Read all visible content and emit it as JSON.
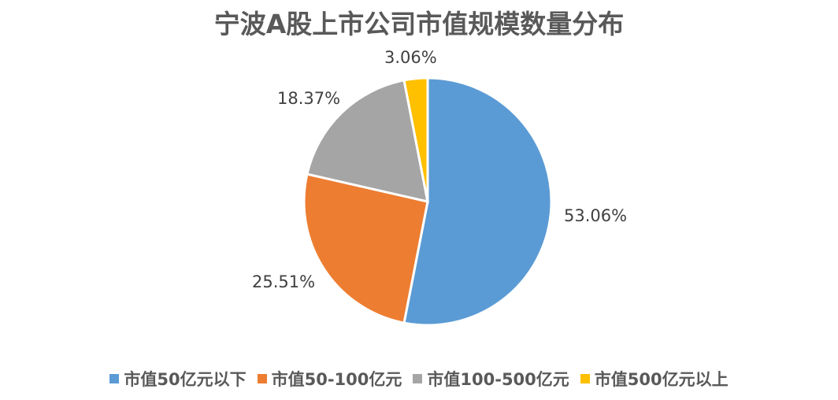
{
  "chart_data": {
    "type": "pie",
    "title": "宁波A股上市公司市值规模数量分布",
    "categories": [
      "市值50亿元以下",
      "市值50-100亿元",
      "市值100-500亿元",
      "市值500亿元以上"
    ],
    "values": [
      53.06,
      25.51,
      18.37,
      3.06
    ],
    "labels": [
      "53.06%",
      "25.51%",
      "18.37%",
      "3.06%"
    ],
    "colors": [
      "#5B9BD5",
      "#ED7D31",
      "#A5A5A5",
      "#FFC000"
    ],
    "legend_position": "bottom",
    "start_angle": "12 o'clock, clockwise"
  },
  "legend": [
    {
      "label": "市值50亿元以下",
      "color": "#5B9BD5"
    },
    {
      "label": "市值50-100亿元",
      "color": "#ED7D31"
    },
    {
      "label": "市值100-500亿元",
      "color": "#A5A5A5"
    },
    {
      "label": "市值500亿元以上",
      "color": "#FFC000"
    }
  ]
}
